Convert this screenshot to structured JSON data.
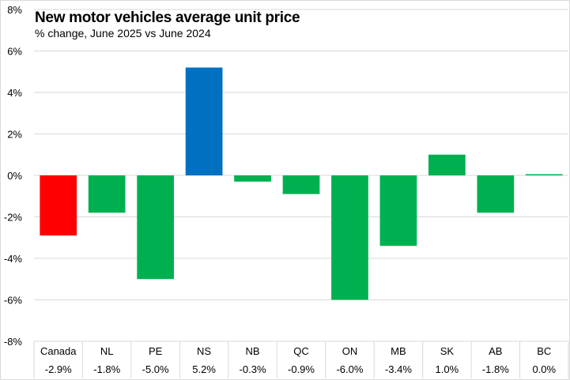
{
  "chart_data": {
    "type": "bar",
    "title": "New motor vehicles average unit price",
    "subtitle": "% change, June 2025 vs June 2024",
    "xlabel": "",
    "ylabel": "",
    "categories": [
      "Canada",
      "NL",
      "PE",
      "NS",
      "NB",
      "QC",
      "ON",
      "MB",
      "SK",
      "AB",
      "BC"
    ],
    "values": [
      -2.9,
      -1.8,
      -5.0,
      5.2,
      -0.3,
      -0.9,
      -6.0,
      -3.4,
      1.0,
      -1.8,
      0.0
    ],
    "value_labels": [
      "-2.9%",
      "-1.8%",
      "-5.0%",
      "5.2%",
      "-0.3%",
      "-0.9%",
      "-6.0%",
      "-3.4%",
      "1.0%",
      "-1.8%",
      "0.0%"
    ],
    "ylim": [
      -8,
      8
    ],
    "yticks": [
      8,
      6,
      4,
      2,
      0,
      -2,
      -4,
      -6,
      -8
    ],
    "ytick_labels": [
      "8%",
      "6%",
      "4%",
      "2%",
      "0%",
      "-2%",
      "-4%",
      "-6%",
      "-8%"
    ],
    "grid": true,
    "legend": "none",
    "colors": {
      "Canada": "#ff0000",
      "highlight": "#0070c0",
      "default": "#00b050"
    },
    "highlight_category": "NS",
    "table_below_axis": true
  }
}
